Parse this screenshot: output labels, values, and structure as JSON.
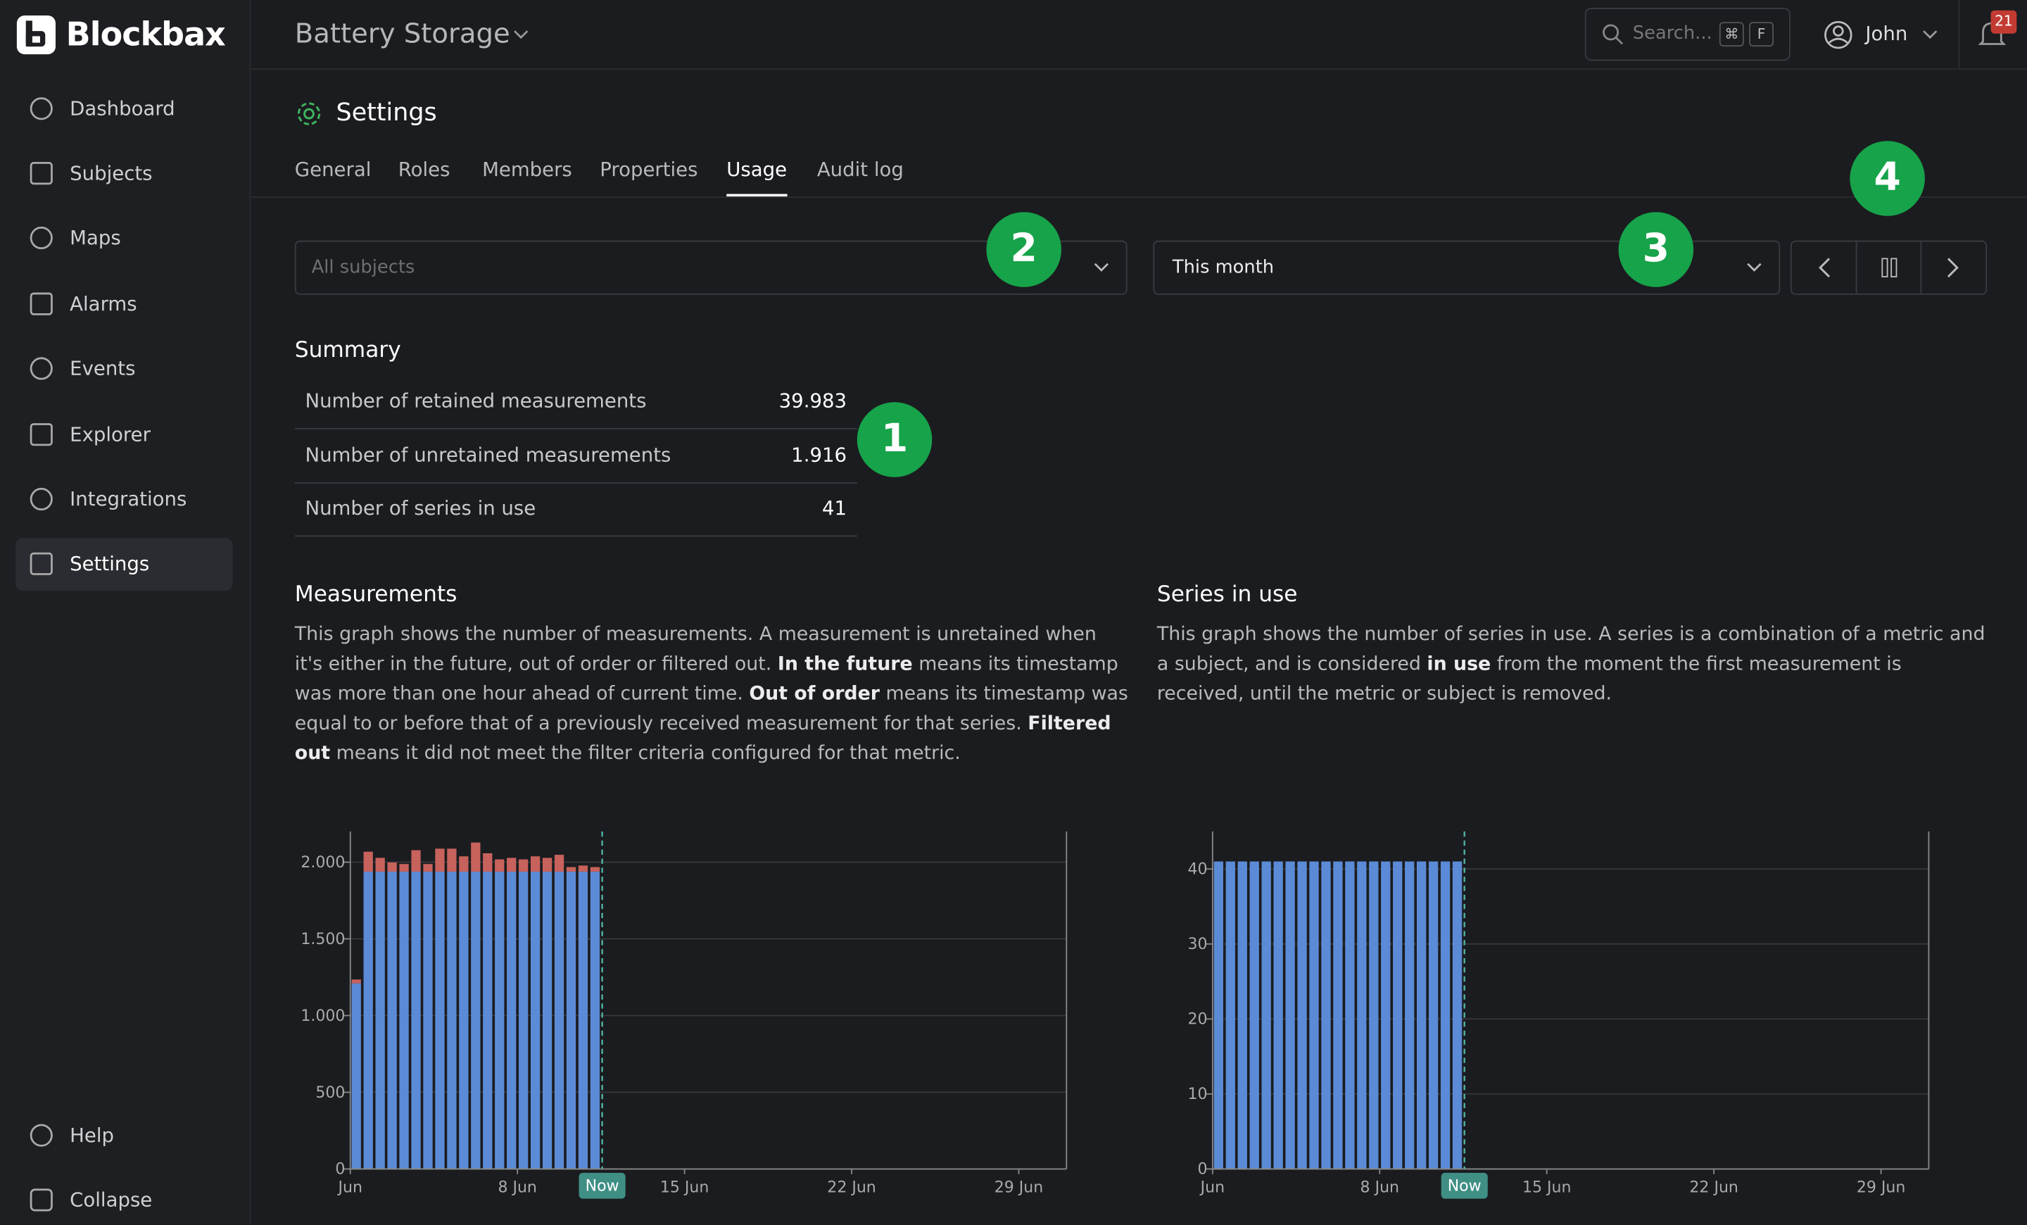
{
  "brand": "Blockbax",
  "sidebar": {
    "items": [
      "Dashboard",
      "Subjects",
      "Maps",
      "Alarms",
      "Events",
      "Explorer",
      "Integrations",
      "Settings"
    ],
    "active": 7,
    "footer": [
      "Help",
      "Collapse"
    ]
  },
  "header": {
    "project": "Battery Storage",
    "search": "Search...",
    "shortcut": [
      "⌘",
      "F"
    ],
    "user": "John",
    "notifications": "21"
  },
  "page": {
    "title": "Settings",
    "tabs": [
      "General",
      "Roles",
      "Members",
      "Properties",
      "Usage",
      "Audit log"
    ],
    "active_tab": 4,
    "subject_filter": "All subjects",
    "period": "This month"
  },
  "badges": [
    "1",
    "2",
    "3",
    "4"
  ],
  "summary": {
    "title": "Summary",
    "rows": [
      [
        "Number of retained measurements",
        "39.983"
      ],
      [
        "Number of unretained measurements",
        "1.916"
      ],
      [
        "Number of series in use",
        "41"
      ]
    ]
  },
  "sections": [
    {
      "title": "Measurements",
      "paragraph": [
        {
          "text": "This graph shows the number of measurements. A measurement is unretained when it's either in the future, out of order or filtered out. ",
          "bold": false
        },
        {
          "text": "In the future",
          "bold": true
        },
        {
          "text": " means its timestamp was more than one hour ahead of current time. ",
          "bold": false
        },
        {
          "text": "Out of order",
          "bold": true
        },
        {
          "text": " means its timestamp was equal to or before that of a previously received measurement for that series. ",
          "bold": false
        },
        {
          "text": "Filtered out",
          "bold": true
        },
        {
          "text": " means it did not meet the filter criteria configured for that metric.",
          "bold": false
        }
      ]
    },
    {
      "title": "Series in use",
      "paragraph": [
        {
          "text": "This graph shows the number of series in use. A series is a combination of a metric and a subject, and is considered ",
          "bold": false
        },
        {
          "text": "in use",
          "bold": true
        },
        {
          "text": " from the moment the first measurement is received, until the metric or subject is removed.",
          "bold": false
        }
      ]
    }
  ],
  "chart_data": [
    {
      "type": "stacked_bar",
      "x": [
        0,
        0.5,
        1,
        1.5,
        2,
        2.5,
        3,
        3.5,
        4,
        4.5,
        5,
        5.5,
        6,
        6.5,
        7,
        7.5,
        8,
        8.5,
        9,
        9.5,
        10
      ],
      "series": [
        {
          "color": "#5b8bd6",
          "values": [
            1210,
            1938,
            1938,
            1938,
            1938,
            1938,
            1938,
            1938,
            1938,
            1938,
            1938,
            1938,
            1938,
            1938,
            1938,
            1938,
            1938,
            1938,
            1938,
            1938,
            1938
          ]
        },
        {
          "color": "#c8625c",
          "values": [
            25,
            130,
            90,
            60,
            50,
            140,
            50,
            150,
            150,
            100,
            190,
            120,
            80,
            90,
            80,
            100,
            90,
            110,
            30,
            40,
            30
          ]
        }
      ],
      "xlim": [
        0,
        30
      ],
      "xticks": [
        {
          "value": 0,
          "label": "Jun"
        },
        {
          "value": 7,
          "label": "8 Jun"
        },
        {
          "value": 14,
          "label": "15 Jun"
        },
        {
          "value": 21,
          "label": "22 Jun"
        },
        {
          "value": 28,
          "label": "29 Jun"
        }
      ],
      "ylim": [
        0,
        2200
      ],
      "yticks": [
        0,
        500,
        {
          "value": 1000,
          "label": "1.000"
        },
        {
          "value": 1500,
          "label": "1.500"
        },
        {
          "value": 2000,
          "label": "2.000"
        }
      ],
      "now": {
        "value": 10.55,
        "label": "Now"
      },
      "grid": true
    },
    {
      "type": "stacked_bar",
      "x": [
        0,
        0.5,
        1,
        1.5,
        2,
        2.5,
        3,
        3.5,
        4,
        4.5,
        5,
        5.5,
        6,
        6.5,
        7,
        7.5,
        8,
        8.5,
        9,
        9.5,
        10
      ],
      "series": [
        {
          "color": "#5b8bd6",
          "values": [
            41,
            41,
            41,
            41,
            41,
            41,
            41,
            41,
            41,
            41,
            41,
            41,
            41,
            41,
            41,
            41,
            41,
            41,
            41,
            41,
            41
          ]
        }
      ],
      "xlim": [
        0,
        30
      ],
      "xticks": [
        {
          "value": 0,
          "label": "Jun"
        },
        {
          "value": 7,
          "label": "8 Jun"
        },
        {
          "value": 14,
          "label": "15 Jun"
        },
        {
          "value": 21,
          "label": "22 Jun"
        },
        {
          "value": 28,
          "label": "29 Jun"
        }
      ],
      "ylim": [
        0,
        45
      ],
      "yticks": [
        0,
        10,
        20,
        30,
        40
      ],
      "now": {
        "value": 10.55,
        "label": "Now"
      },
      "grid": true
    }
  ]
}
